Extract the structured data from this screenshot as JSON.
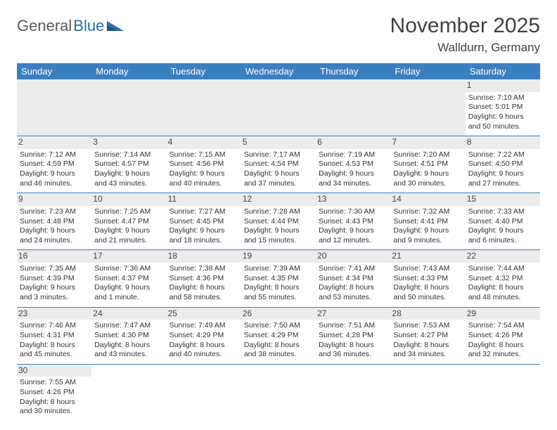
{
  "logo": {
    "text1": "General",
    "text2": "Blue"
  },
  "title": "November 2025",
  "location": "Walldurn, Germany",
  "colors": {
    "header_bg": "#3b7fbf",
    "header_text": "#ffffff",
    "daynum_bg": "#ececec",
    "rule": "#3b7fbf",
    "text": "#333333",
    "logo_gray": "#5a5a5a",
    "logo_blue": "#2c6ca8"
  },
  "weekdays": [
    "Sunday",
    "Monday",
    "Tuesday",
    "Wednesday",
    "Thursday",
    "Friday",
    "Saturday"
  ],
  "weeks": [
    [
      null,
      null,
      null,
      null,
      null,
      null,
      {
        "n": "1",
        "sr": "Sunrise: 7:10 AM",
        "ss": "Sunset: 5:01 PM",
        "d1": "Daylight: 9 hours",
        "d2": "and 50 minutes."
      }
    ],
    [
      {
        "n": "2",
        "sr": "Sunrise: 7:12 AM",
        "ss": "Sunset: 4:59 PM",
        "d1": "Daylight: 9 hours",
        "d2": "and 46 minutes."
      },
      {
        "n": "3",
        "sr": "Sunrise: 7:14 AM",
        "ss": "Sunset: 4:57 PM",
        "d1": "Daylight: 9 hours",
        "d2": "and 43 minutes."
      },
      {
        "n": "4",
        "sr": "Sunrise: 7:15 AM",
        "ss": "Sunset: 4:56 PM",
        "d1": "Daylight: 9 hours",
        "d2": "and 40 minutes."
      },
      {
        "n": "5",
        "sr": "Sunrise: 7:17 AM",
        "ss": "Sunset: 4:54 PM",
        "d1": "Daylight: 9 hours",
        "d2": "and 37 minutes."
      },
      {
        "n": "6",
        "sr": "Sunrise: 7:19 AM",
        "ss": "Sunset: 4:53 PM",
        "d1": "Daylight: 9 hours",
        "d2": "and 34 minutes."
      },
      {
        "n": "7",
        "sr": "Sunrise: 7:20 AM",
        "ss": "Sunset: 4:51 PM",
        "d1": "Daylight: 9 hours",
        "d2": "and 30 minutes."
      },
      {
        "n": "8",
        "sr": "Sunrise: 7:22 AM",
        "ss": "Sunset: 4:50 PM",
        "d1": "Daylight: 9 hours",
        "d2": "and 27 minutes."
      }
    ],
    [
      {
        "n": "9",
        "sr": "Sunrise: 7:23 AM",
        "ss": "Sunset: 4:48 PM",
        "d1": "Daylight: 9 hours",
        "d2": "and 24 minutes."
      },
      {
        "n": "10",
        "sr": "Sunrise: 7:25 AM",
        "ss": "Sunset: 4:47 PM",
        "d1": "Daylight: 9 hours",
        "d2": "and 21 minutes."
      },
      {
        "n": "11",
        "sr": "Sunrise: 7:27 AM",
        "ss": "Sunset: 4:45 PM",
        "d1": "Daylight: 9 hours",
        "d2": "and 18 minutes."
      },
      {
        "n": "12",
        "sr": "Sunrise: 7:28 AM",
        "ss": "Sunset: 4:44 PM",
        "d1": "Daylight: 9 hours",
        "d2": "and 15 minutes."
      },
      {
        "n": "13",
        "sr": "Sunrise: 7:30 AM",
        "ss": "Sunset: 4:43 PM",
        "d1": "Daylight: 9 hours",
        "d2": "and 12 minutes."
      },
      {
        "n": "14",
        "sr": "Sunrise: 7:32 AM",
        "ss": "Sunset: 4:41 PM",
        "d1": "Daylight: 9 hours",
        "d2": "and 9 minutes."
      },
      {
        "n": "15",
        "sr": "Sunrise: 7:33 AM",
        "ss": "Sunset: 4:40 PM",
        "d1": "Daylight: 9 hours",
        "d2": "and 6 minutes."
      }
    ],
    [
      {
        "n": "16",
        "sr": "Sunrise: 7:35 AM",
        "ss": "Sunset: 4:39 PM",
        "d1": "Daylight: 9 hours",
        "d2": "and 3 minutes."
      },
      {
        "n": "17",
        "sr": "Sunrise: 7:36 AM",
        "ss": "Sunset: 4:37 PM",
        "d1": "Daylight: 9 hours",
        "d2": "and 1 minute."
      },
      {
        "n": "18",
        "sr": "Sunrise: 7:38 AM",
        "ss": "Sunset: 4:36 PM",
        "d1": "Daylight: 8 hours",
        "d2": "and 58 minutes."
      },
      {
        "n": "19",
        "sr": "Sunrise: 7:39 AM",
        "ss": "Sunset: 4:35 PM",
        "d1": "Daylight: 8 hours",
        "d2": "and 55 minutes."
      },
      {
        "n": "20",
        "sr": "Sunrise: 7:41 AM",
        "ss": "Sunset: 4:34 PM",
        "d1": "Daylight: 8 hours",
        "d2": "and 53 minutes."
      },
      {
        "n": "21",
        "sr": "Sunrise: 7:43 AM",
        "ss": "Sunset: 4:33 PM",
        "d1": "Daylight: 8 hours",
        "d2": "and 50 minutes."
      },
      {
        "n": "22",
        "sr": "Sunrise: 7:44 AM",
        "ss": "Sunset: 4:32 PM",
        "d1": "Daylight: 8 hours",
        "d2": "and 48 minutes."
      }
    ],
    [
      {
        "n": "23",
        "sr": "Sunrise: 7:46 AM",
        "ss": "Sunset: 4:31 PM",
        "d1": "Daylight: 8 hours",
        "d2": "and 45 minutes."
      },
      {
        "n": "24",
        "sr": "Sunrise: 7:47 AM",
        "ss": "Sunset: 4:30 PM",
        "d1": "Daylight: 8 hours",
        "d2": "and 43 minutes."
      },
      {
        "n": "25",
        "sr": "Sunrise: 7:49 AM",
        "ss": "Sunset: 4:29 PM",
        "d1": "Daylight: 8 hours",
        "d2": "and 40 minutes."
      },
      {
        "n": "26",
        "sr": "Sunrise: 7:50 AM",
        "ss": "Sunset: 4:29 PM",
        "d1": "Daylight: 8 hours",
        "d2": "and 38 minutes."
      },
      {
        "n": "27",
        "sr": "Sunrise: 7:51 AM",
        "ss": "Sunset: 4:28 PM",
        "d1": "Daylight: 8 hours",
        "d2": "and 36 minutes."
      },
      {
        "n": "28",
        "sr": "Sunrise: 7:53 AM",
        "ss": "Sunset: 4:27 PM",
        "d1": "Daylight: 8 hours",
        "d2": "and 34 minutes."
      },
      {
        "n": "29",
        "sr": "Sunrise: 7:54 AM",
        "ss": "Sunset: 4:26 PM",
        "d1": "Daylight: 8 hours",
        "d2": "and 32 minutes."
      }
    ],
    [
      {
        "n": "30",
        "sr": "Sunrise: 7:55 AM",
        "ss": "Sunset: 4:26 PM",
        "d1": "Daylight: 8 hours",
        "d2": "and 30 minutes."
      },
      null,
      null,
      null,
      null,
      null,
      null
    ]
  ]
}
